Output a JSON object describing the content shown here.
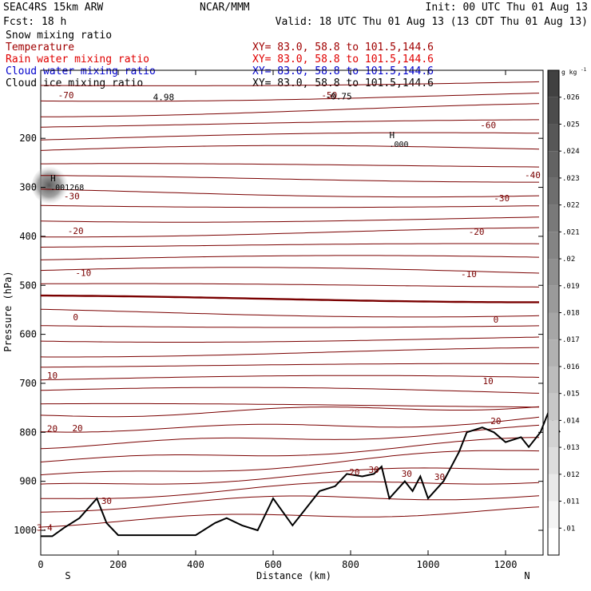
{
  "header": {
    "model": "SEAC4RS 15km ARW",
    "org": "NCAR/MMM",
    "init": "Init: 00 UTC Thu 01 Aug 13",
    "fcst_label": "Fcst:",
    "fcst_value": "18 h",
    "valid": "Valid: 18 UTC Thu 01 Aug 13 (13 CDT Thu 01 Aug 13)"
  },
  "fields": [
    {
      "name": "Snow mixing ratio",
      "xy": "",
      "color": "#000000"
    },
    {
      "name": "Temperature",
      "xy": "XY=  83.0, 58.8 to 101.5,144.6",
      "color": "#a00000"
    },
    {
      "name": "Rain water mixing ratio",
      "xy": "XY=  83.0, 58.8 to 101.5,144.6",
      "color": "#e00000"
    },
    {
      "name": "Cloud water mixing ratio",
      "xy": "XY=  83.0, 58.8 to 101.5,144.6",
      "color": "#0000cc"
    },
    {
      "name": "Cloud ice mixing ratio",
      "xy": "XY=  83.0, 58.8 to 101.5,144.6",
      "color": "#000000"
    }
  ],
  "snow_xy": "XY=  83.0, 58.8 to 101.5,144.6",
  "chart_data": {
    "type": "cross-section contour",
    "xlabel": "Distance (km)",
    "ylabel": "Pressure (hPa)",
    "xlim": [
      0,
      1340
    ],
    "ylim": [
      1050,
      100
    ],
    "x_ticks": [
      0,
      200,
      400,
      600,
      800,
      1000,
      1200
    ],
    "y_ticks": [
      200,
      300,
      400,
      500,
      600,
      700,
      800,
      900,
      1000
    ],
    "end_labels": {
      "left": "S",
      "right": "N"
    },
    "temperature_labels": [
      {
        "text": "-70",
        "x": 65,
        "p": 112
      },
      {
        "text": "-60",
        "x": 1155,
        "p": 173
      },
      {
        "text": "-50",
        "x": 745,
        "p": 112
      },
      {
        "text": "-40",
        "x": 1270,
        "p": 275
      },
      {
        "text": "-30",
        "x": 80,
        "p": 318
      },
      {
        "text": "-30",
        "x": 1190,
        "p": 322
      },
      {
        "text": "-20",
        "x": 90,
        "p": 389
      },
      {
        "text": "-20",
        "x": 1125,
        "p": 390
      },
      {
        "text": "-10",
        "x": 110,
        "p": 474
      },
      {
        "text": "-10",
        "x": 1105,
        "p": 477
      },
      {
        "text": "0",
        "x": 90,
        "p": 565
      },
      {
        "text": "0",
        "x": 1175,
        "p": 570
      },
      {
        "text": "10",
        "x": 30,
        "p": 684
      },
      {
        "text": "10",
        "x": 1155,
        "p": 695
      },
      {
        "text": "20",
        "x": 30,
        "p": 792
      },
      {
        "text": "20",
        "x": 95,
        "p": 791
      },
      {
        "text": "20",
        "x": 1175,
        "p": 777
      },
      {
        "text": "20",
        "x": 810,
        "p": 881
      },
      {
        "text": "30",
        "x": 860,
        "p": 876
      },
      {
        "text": "30",
        "x": 945,
        "p": 884
      },
      {
        "text": "30",
        "x": 1030,
        "p": 891
      },
      {
        "text": "30",
        "x": 170,
        "p": 940
      },
      {
        "text": "3.4",
        "x": 10,
        "p": 994
      }
    ],
    "highs": [
      {
        "label": "H",
        "value": ".001268",
        "x": 25,
        "p": 288
      },
      {
        "label": "H",
        "value": ".000",
        "x": 900,
        "p": 200
      }
    ],
    "extra_labels": [
      {
        "text": "4.98",
        "x": 290,
        "p": 122
      },
      {
        "text": "-0.75",
        "x": 735,
        "p": 121
      }
    ],
    "colorbar": {
      "unit": "g kg",
      "unit_sup": "-1",
      "ticks": [
        ".01",
        ".011",
        ".012",
        ".013",
        ".014",
        ".015",
        ".016",
        ".017",
        ".018",
        ".019",
        ".02",
        ".021",
        ".022",
        ".023",
        ".024",
        ".025",
        ".026"
      ]
    }
  }
}
